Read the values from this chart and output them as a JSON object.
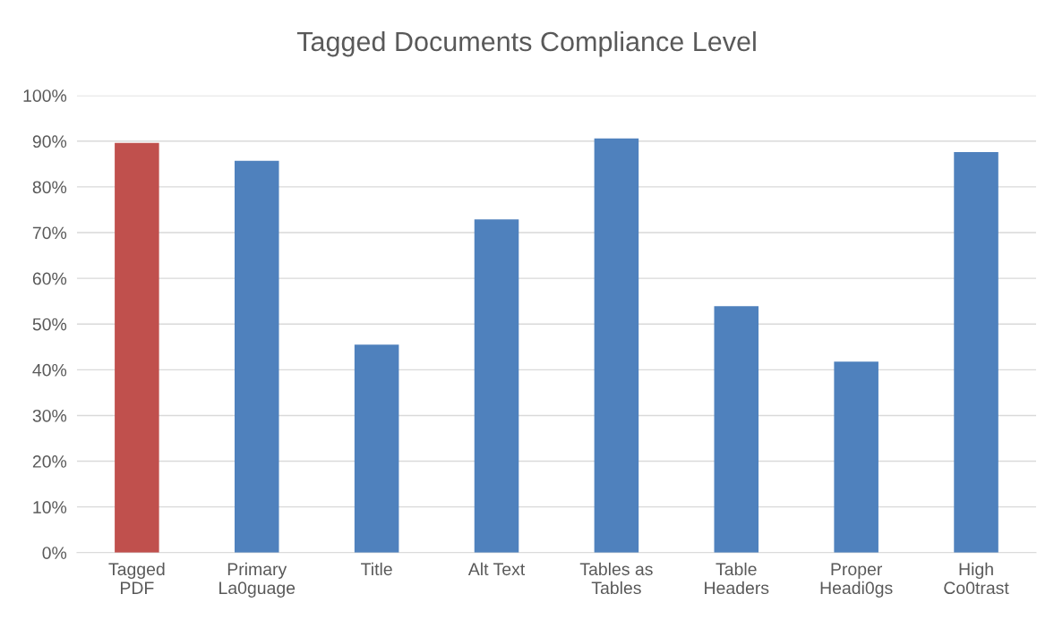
{
  "chart_data": {
    "type": "bar",
    "title": "Tagged Documents Compliance Level",
    "categories": [
      "Tagged\nPDF",
      "Primary\nLa0guage",
      "Title",
      "Alt Text",
      "Tables as\nTables",
      "Table\nHeaders",
      "Proper\nHeadi0gs",
      "High\nCo0trast"
    ],
    "values": [
      89.6,
      85.7,
      45.5,
      72.9,
      90.6,
      53.9,
      41.8,
      87.6
    ],
    "colors": [
      "#c0504d",
      "#4f81bd",
      "#4f81bd",
      "#4f81bd",
      "#4f81bd",
      "#4f81bd",
      "#4f81bd",
      "#4f81bd"
    ],
    "ylim": [
      0,
      100
    ],
    "yticks": [
      {
        "value": 0,
        "label": "0%"
      },
      {
        "value": 10,
        "label": "10%"
      },
      {
        "value": 20,
        "label": "20%"
      },
      {
        "value": 30,
        "label": "30%"
      },
      {
        "value": 40,
        "label": "40%"
      },
      {
        "value": 50,
        "label": "50%"
      },
      {
        "value": 60,
        "label": "60%"
      },
      {
        "value": 70,
        "label": "70%"
      },
      {
        "value": 80,
        "label": "80%"
      },
      {
        "value": 90,
        "label": "90%"
      },
      {
        "value": 100,
        "label": "100%"
      }
    ],
    "grid": "y"
  }
}
